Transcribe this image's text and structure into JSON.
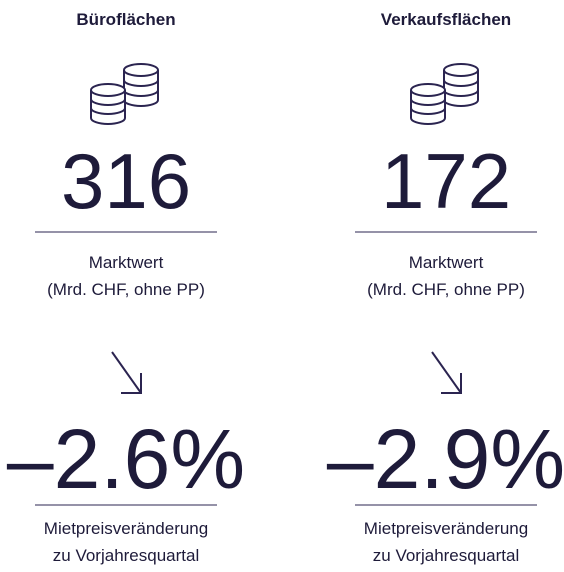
{
  "columns": [
    {
      "title": "Büroflächen",
      "value": "316",
      "value_label": [
        "Marktwert",
        "(Mrd. CHF, ohne PP)"
      ],
      "change": "–2.6%",
      "change_label": [
        "Mietpreisveränderung",
        "zu Vorjahresquartal"
      ]
    },
    {
      "title": "Verkaufsflächen",
      "value": "172",
      "value_label": [
        "Marktwert",
        "(Mrd. CHF, ohne PP)"
      ],
      "change": "–2.9%",
      "change_label": [
        "Mietpreisveränderung",
        "zu Vorjahresquartal"
      ]
    }
  ]
}
